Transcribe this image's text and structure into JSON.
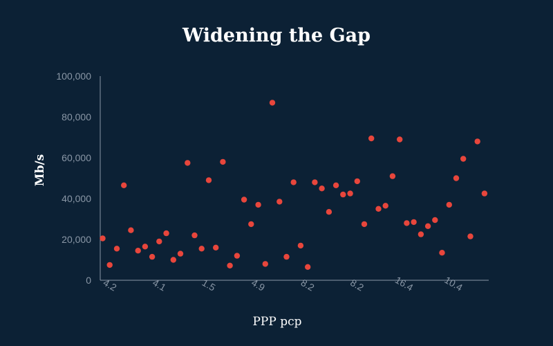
{
  "chart_data": {
    "type": "scatter",
    "title": "Widening the Gap",
    "xlabel": "PPP pcp",
    "ylabel": "Mb/s",
    "ylim": [
      0,
      100000
    ],
    "yticks": [
      0,
      20000,
      40000,
      60000,
      80000,
      100000
    ],
    "ytick_labels": [
      "0",
      "20,000",
      "40,000",
      "60,000",
      "80,000",
      "100,000"
    ],
    "xtick_labels": [
      "4.2",
      "4.1",
      "1.5",
      "4.9",
      "8.2",
      "8.2",
      "16.4",
      "10.4"
    ],
    "grid": false,
    "legend": "none",
    "colors": {
      "background": "#0c2135",
      "point": "#e8463c",
      "axis": "#8a97a6",
      "tick_text": "#8a97a6",
      "title_text": "#ffffff"
    },
    "series": [
      {
        "x": [
          1,
          2,
          3,
          4,
          5,
          6,
          7,
          8,
          9,
          10,
          11,
          12,
          13,
          14,
          15,
          16,
          17,
          18,
          19,
          20,
          21,
          22,
          23,
          24,
          25,
          26,
          27,
          28,
          29,
          30,
          31,
          32,
          33,
          34,
          35,
          36,
          37,
          38,
          39,
          40,
          41,
          42,
          43,
          44,
          45,
          46,
          47,
          48,
          49,
          50,
          51,
          52,
          53,
          54,
          55
        ],
        "values": [
          20500,
          7500,
          15500,
          46500,
          24500,
          14500,
          16500,
          11500,
          19000,
          23000,
          10000,
          13000,
          57500,
          22000,
          15500,
          49000,
          16000,
          58000,
          7200,
          12000,
          39500,
          27500,
          37000,
          8000,
          87000,
          38500,
          11500,
          48000,
          17000,
          6500,
          48000,
          45000,
          33500,
          46500,
          42000,
          42500,
          48500,
          27500,
          69500,
          35000,
          36500,
          51000,
          69000,
          28000,
          28500,
          22500,
          26500,
          29500,
          13500,
          37000,
          50000,
          59500,
          21500,
          68000,
          42500
        ]
      }
    ]
  }
}
